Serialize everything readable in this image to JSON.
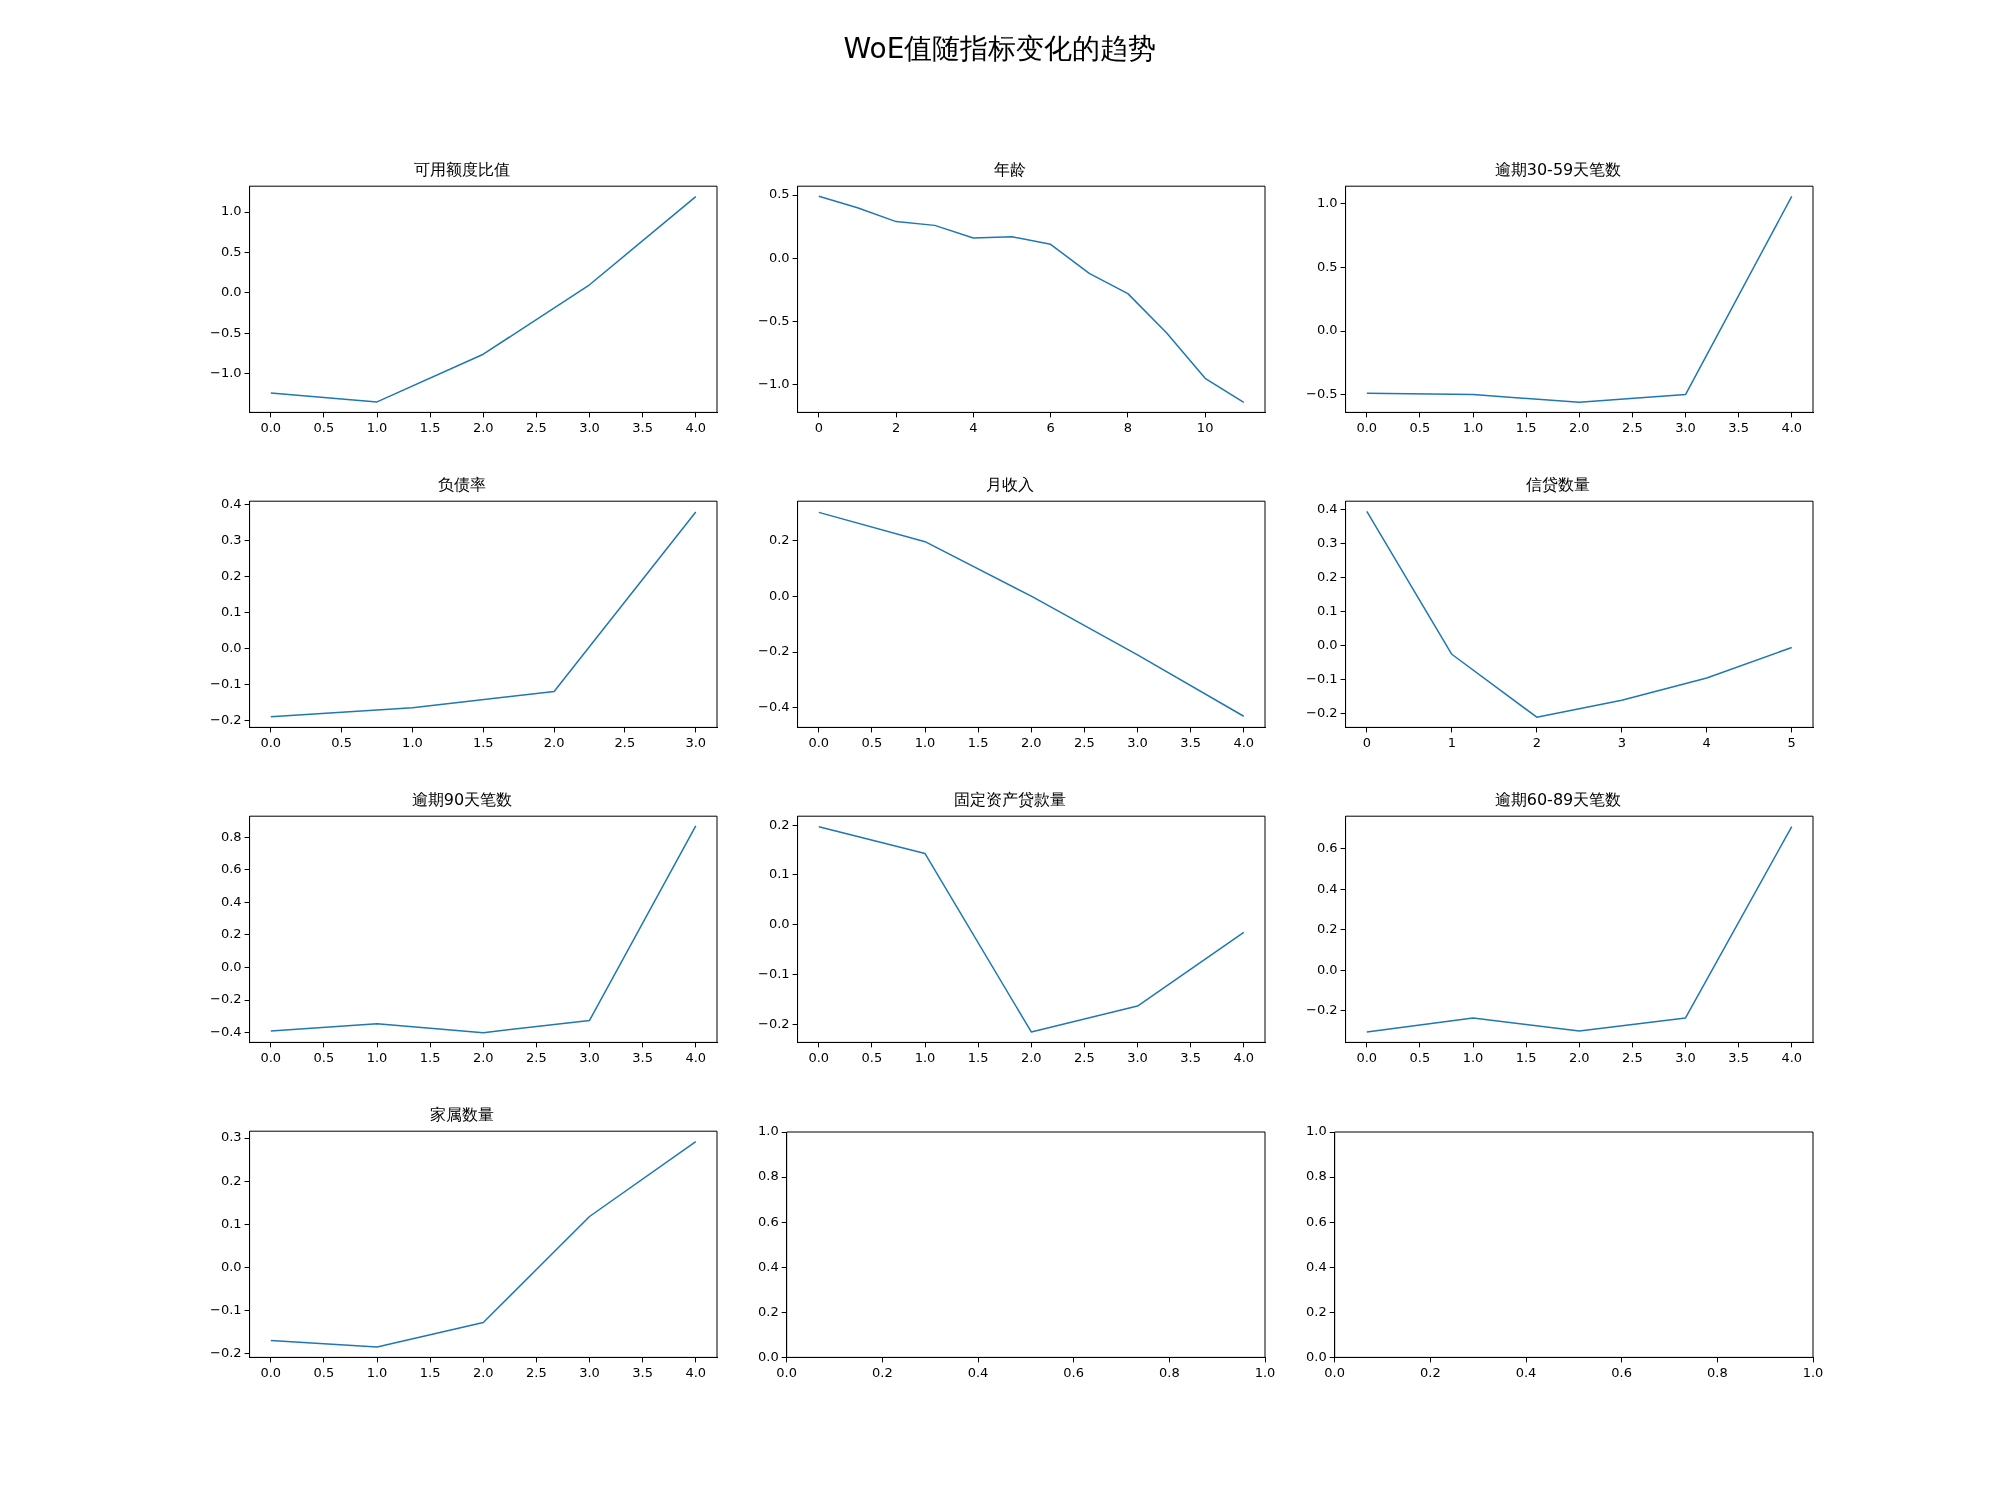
{
  "chart_data": [
    {
      "type": "other",
      "title": "WoE值随指标变化的趋势"
    },
    {
      "type": "line",
      "title": "可用额度比值",
      "x": [
        0,
        1,
        2,
        3,
        4
      ],
      "series": [
        {
          "color": "#1f77b4",
          "values": [
            -1.24,
            -1.35,
            -0.76,
            0.1,
            1.19
          ]
        }
      ],
      "xlim": [
        -0.2,
        4.2
      ],
      "ylim": [
        -1.48,
        1.32
      ],
      "xticks": [
        {
          "value": 0,
          "label": "0.0"
        },
        {
          "value": 0.5,
          "label": "0.5"
        },
        {
          "value": 1,
          "label": "1.0"
        },
        {
          "value": 1.5,
          "label": "1.5"
        },
        {
          "value": 2,
          "label": "2.0"
        },
        {
          "value": 2.5,
          "label": "2.5"
        },
        {
          "value": 3,
          "label": "3.0"
        },
        {
          "value": 3.5,
          "label": "3.5"
        },
        {
          "value": 4,
          "label": "4.0"
        }
      ],
      "yticks": [
        {
          "value": -1,
          "label": "−1.0"
        },
        {
          "value": -0.5,
          "label": "−0.5"
        },
        {
          "value": 0,
          "label": "0.0"
        },
        {
          "value": 0.5,
          "label": "0.5"
        },
        {
          "value": 1,
          "label": "1.0"
        }
      ]
    },
    {
      "type": "line",
      "title": "年龄",
      "x": [
        0,
        1,
        2,
        3,
        4,
        5,
        6,
        7,
        8,
        9,
        10,
        11
      ],
      "series": [
        {
          "color": "#1f77b4",
          "values": [
            0.49,
            0.4,
            0.29,
            0.26,
            0.16,
            0.17,
            0.11,
            -0.12,
            -0.28,
            -0.59,
            -0.95,
            -1.14
          ]
        }
      ],
      "xlim": [
        -0.55,
        11.55
      ],
      "ylim": [
        -1.22,
        0.57
      ],
      "xticks": [
        0,
        2,
        4,
        6,
        8,
        10
      ],
      "yticks": [
        {
          "value": -1,
          "label": "−1.0"
        },
        {
          "value": -0.5,
          "label": "−0.5"
        },
        {
          "value": 0,
          "label": "0.0"
        },
        {
          "value": 0.5,
          "label": "0.5"
        }
      ]
    },
    {
      "type": "line",
      "title": "逾期30-59天笔数",
      "x": [
        0,
        1,
        2,
        3,
        4
      ],
      "series": [
        {
          "color": "#1f77b4",
          "values": [
            -0.49,
            -0.5,
            -0.56,
            -0.5,
            1.06
          ]
        }
      ],
      "xlim": [
        -0.2,
        4.2
      ],
      "ylim": [
        -0.64,
        1.14
      ],
      "xticks": [
        {
          "value": 0,
          "label": "0.0"
        },
        {
          "value": 0.5,
          "label": "0.5"
        },
        {
          "value": 1,
          "label": "1.0"
        },
        {
          "value": 1.5,
          "label": "1.5"
        },
        {
          "value": 2,
          "label": "2.0"
        },
        {
          "value": 2.5,
          "label": "2.5"
        },
        {
          "value": 3,
          "label": "3.0"
        },
        {
          "value": 3.5,
          "label": "3.5"
        },
        {
          "value": 4,
          "label": "4.0"
        }
      ],
      "yticks": [
        {
          "value": -0.5,
          "label": "−0.5"
        },
        {
          "value": 0,
          "label": "0.0"
        },
        {
          "value": 0.5,
          "label": "0.5"
        },
        {
          "value": 1,
          "label": "1.0"
        }
      ]
    },
    {
      "type": "line",
      "title": "负债率",
      "x": [
        0,
        1,
        2,
        3
      ],
      "series": [
        {
          "color": "#1f77b4",
          "values": [
            -0.19,
            -0.165,
            -0.12,
            0.38
          ]
        }
      ],
      "xlim": [
        -0.15,
        3.15
      ],
      "ylim": [
        -0.22,
        0.41
      ],
      "xticks": [
        {
          "value": 0,
          "label": "0.0"
        },
        {
          "value": 0.5,
          "label": "0.5"
        },
        {
          "value": 1,
          "label": "1.0"
        },
        {
          "value": 1.5,
          "label": "1.5"
        },
        {
          "value": 2,
          "label": "2.0"
        },
        {
          "value": 2.5,
          "label": "2.5"
        },
        {
          "value": 3,
          "label": "3.0"
        }
      ],
      "yticks": [
        {
          "value": -0.2,
          "label": "−0.2"
        },
        {
          "value": -0.1,
          "label": "−0.1"
        },
        {
          "value": 0,
          "label": "0.0"
        },
        {
          "value": 0.1,
          "label": "0.1"
        },
        {
          "value": 0.2,
          "label": "0.2"
        },
        {
          "value": 0.3,
          "label": "0.3"
        },
        {
          "value": 0.4,
          "label": "0.4"
        }
      ]
    },
    {
      "type": "line",
      "title": "月收入",
      "x": [
        0,
        1,
        2,
        3,
        4
      ],
      "series": [
        {
          "color": "#1f77b4",
          "values": [
            0.3,
            0.195,
            0.0,
            -0.21,
            -0.43
          ]
        }
      ],
      "xlim": [
        -0.2,
        4.2
      ],
      "ylim": [
        -0.47,
        0.34
      ],
      "xticks": [
        {
          "value": 0,
          "label": "0.0"
        },
        {
          "value": 0.5,
          "label": "0.5"
        },
        {
          "value": 1,
          "label": "1.0"
        },
        {
          "value": 1.5,
          "label": "1.5"
        },
        {
          "value": 2,
          "label": "2.0"
        },
        {
          "value": 2.5,
          "label": "2.5"
        },
        {
          "value": 3,
          "label": "3.0"
        },
        {
          "value": 3.5,
          "label": "3.5"
        },
        {
          "value": 4,
          "label": "4.0"
        }
      ],
      "yticks": [
        {
          "value": -0.4,
          "label": "−0.4"
        },
        {
          "value": -0.2,
          "label": "−0.2"
        },
        {
          "value": 0,
          "label": "0.0"
        },
        {
          "value": 0.2,
          "label": "0.2"
        }
      ]
    },
    {
      "type": "line",
      "title": "信贷数量",
      "x": [
        0,
        1,
        2,
        3,
        4,
        5
      ],
      "series": [
        {
          "color": "#1f77b4",
          "values": [
            0.395,
            -0.025,
            -0.21,
            -0.16,
            -0.095,
            -0.005
          ]
        }
      ],
      "xlim": [
        -0.25,
        5.25
      ],
      "ylim": [
        -0.24,
        0.425
      ],
      "xticks": [
        0,
        1,
        2,
        3,
        4,
        5
      ],
      "yticks": [
        {
          "value": -0.2,
          "label": "−0.2"
        },
        {
          "value": -0.1,
          "label": "−0.1"
        },
        {
          "value": 0,
          "label": "0.0"
        },
        {
          "value": 0.1,
          "label": "0.1"
        },
        {
          "value": 0.2,
          "label": "0.2"
        },
        {
          "value": 0.3,
          "label": "0.3"
        },
        {
          "value": 0.4,
          "label": "0.4"
        }
      ]
    },
    {
      "type": "line",
      "title": "逾期90天笔数",
      "x": [
        0,
        1,
        2,
        3,
        4
      ],
      "series": [
        {
          "color": "#1f77b4",
          "values": [
            -0.39,
            -0.345,
            -0.4,
            -0.325,
            0.87
          ]
        }
      ],
      "xlim": [
        -0.2,
        4.2
      ],
      "ylim": [
        -0.46,
        0.93
      ],
      "xticks": [
        {
          "value": 0,
          "label": "0.0"
        },
        {
          "value": 0.5,
          "label": "0.5"
        },
        {
          "value": 1,
          "label": "1.0"
        },
        {
          "value": 1.5,
          "label": "1.5"
        },
        {
          "value": 2,
          "label": "2.0"
        },
        {
          "value": 2.5,
          "label": "2.5"
        },
        {
          "value": 3,
          "label": "3.0"
        },
        {
          "value": 3.5,
          "label": "3.5"
        },
        {
          "value": 4,
          "label": "4.0"
        }
      ],
      "yticks": [
        {
          "value": -0.4,
          "label": "−0.4"
        },
        {
          "value": -0.2,
          "label": "−0.2"
        },
        {
          "value": 0,
          "label": "0.0"
        },
        {
          "value": 0.2,
          "label": "0.2"
        },
        {
          "value": 0.4,
          "label": "0.4"
        },
        {
          "value": 0.6,
          "label": "0.6"
        },
        {
          "value": 0.8,
          "label": "0.8"
        }
      ]
    },
    {
      "type": "line",
      "title": "固定资产贷款量",
      "x": [
        0,
        1,
        2,
        3,
        4
      ],
      "series": [
        {
          "color": "#1f77b4",
          "values": [
            0.197,
            0.143,
            -0.215,
            -0.163,
            -0.015
          ]
        }
      ],
      "xlim": [
        -0.2,
        4.2
      ],
      "ylim": [
        -0.236,
        0.218
      ],
      "xticks": [
        {
          "value": 0,
          "label": "0.0"
        },
        {
          "value": 0.5,
          "label": "0.5"
        },
        {
          "value": 1,
          "label": "1.0"
        },
        {
          "value": 1.5,
          "label": "1.5"
        },
        {
          "value": 2,
          "label": "2.0"
        },
        {
          "value": 2.5,
          "label": "2.5"
        },
        {
          "value": 3,
          "label": "3.0"
        },
        {
          "value": 3.5,
          "label": "3.5"
        },
        {
          "value": 4,
          "label": "4.0"
        }
      ],
      "yticks": [
        {
          "value": -0.2,
          "label": "−0.2"
        },
        {
          "value": -0.1,
          "label": "−0.1"
        },
        {
          "value": 0,
          "label": "0.0"
        },
        {
          "value": 0.1,
          "label": "0.1"
        },
        {
          "value": 0.2,
          "label": "0.2"
        }
      ]
    },
    {
      "type": "line",
      "title": "逾期60-89天笔数",
      "x": [
        0,
        1,
        2,
        3,
        4
      ],
      "series": [
        {
          "color": "#1f77b4",
          "values": [
            -0.305,
            -0.235,
            -0.3,
            -0.235,
            0.71
          ]
        }
      ],
      "xlim": [
        -0.2,
        4.2
      ],
      "ylim": [
        -0.356,
        0.761
      ],
      "xticks": [
        {
          "value": 0,
          "label": "0.0"
        },
        {
          "value": 0.5,
          "label": "0.5"
        },
        {
          "value": 1,
          "label": "1.0"
        },
        {
          "value": 1.5,
          "label": "1.5"
        },
        {
          "value": 2,
          "label": "2.0"
        },
        {
          "value": 2.5,
          "label": "2.5"
        },
        {
          "value": 3,
          "label": "3.0"
        },
        {
          "value": 3.5,
          "label": "3.5"
        },
        {
          "value": 4,
          "label": "4.0"
        }
      ],
      "yticks": [
        {
          "value": -0.2,
          "label": "−0.2"
        },
        {
          "value": 0,
          "label": "0.0"
        },
        {
          "value": 0.2,
          "label": "0.2"
        },
        {
          "value": 0.4,
          "label": "0.4"
        },
        {
          "value": 0.6,
          "label": "0.6"
        }
      ]
    },
    {
      "type": "line",
      "title": "家属数量",
      "x": [
        0,
        1,
        2,
        3,
        4
      ],
      "series": [
        {
          "color": "#1f77b4",
          "values": [
            -0.17,
            -0.185,
            -0.128,
            0.118,
            0.292
          ]
        }
      ],
      "xlim": [
        -0.2,
        4.2
      ],
      "ylim": [
        -0.209,
        0.316
      ],
      "xticks": [
        {
          "value": 0,
          "label": "0.0"
        },
        {
          "value": 0.5,
          "label": "0.5"
        },
        {
          "value": 1,
          "label": "1.0"
        },
        {
          "value": 1.5,
          "label": "1.5"
        },
        {
          "value": 2,
          "label": "2.0"
        },
        {
          "value": 2.5,
          "label": "2.5"
        },
        {
          "value": 3,
          "label": "3.0"
        },
        {
          "value": 3.5,
          "label": "3.5"
        },
        {
          "value": 4,
          "label": "4.0"
        }
      ],
      "yticks": [
        {
          "value": -0.2,
          "label": "−0.2"
        },
        {
          "value": -0.1,
          "label": "−0.1"
        },
        {
          "value": 0,
          "label": "0.0"
        },
        {
          "value": 0.1,
          "label": "0.1"
        },
        {
          "value": 0.2,
          "label": "0.2"
        },
        {
          "value": 0.3,
          "label": "0.3"
        }
      ]
    },
    {
      "type": "line",
      "xlim": [
        0,
        1
      ],
      "ylim": [
        0,
        1
      ],
      "xticks": [
        {
          "value": 0,
          "label": "0.0"
        },
        {
          "value": 0.2,
          "label": "0.2"
        },
        {
          "value": 0.4,
          "label": "0.4"
        },
        {
          "value": 0.6,
          "label": "0.6"
        },
        {
          "value": 0.8,
          "label": "0.8"
        },
        {
          "value": 1,
          "label": "1.0"
        }
      ],
      "yticks": [
        {
          "value": 0,
          "label": "0.0"
        },
        {
          "value": 0.2,
          "label": "0.2"
        },
        {
          "value": 0.4,
          "label": "0.4"
        },
        {
          "value": 0.6,
          "label": "0.6"
        },
        {
          "value": 0.8,
          "label": "0.8"
        },
        {
          "value": 1,
          "label": "1.0"
        }
      ]
    },
    {
      "type": "line",
      "xlim": [
        0,
        1
      ],
      "ylim": [
        0,
        1
      ],
      "xticks": [
        {
          "value": 0,
          "label": "0.0"
        },
        {
          "value": 0.2,
          "label": "0.2"
        },
        {
          "value": 0.4,
          "label": "0.4"
        },
        {
          "value": 0.6,
          "label": "0.6"
        },
        {
          "value": 0.8,
          "label": "0.8"
        },
        {
          "value": 1,
          "label": "1.0"
        }
      ],
      "yticks": [
        {
          "value": 0,
          "label": "0.0"
        },
        {
          "value": 0.2,
          "label": "0.2"
        },
        {
          "value": 0.4,
          "label": "0.4"
        },
        {
          "value": 0.6,
          "label": "0.6"
        },
        {
          "value": 0.8,
          "label": "0.8"
        },
        {
          "value": 1,
          "label": "1.0"
        }
      ]
    }
  ]
}
